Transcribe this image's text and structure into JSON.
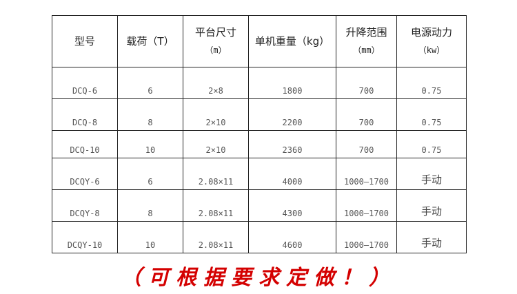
{
  "table": {
    "headers": [
      {
        "label": "型号",
        "unit": ""
      },
      {
        "label": "载荷（T）",
        "unit": ""
      },
      {
        "label": "平台尺寸",
        "unit": "（m）"
      },
      {
        "label": "单机重量（kg）",
        "unit": ""
      },
      {
        "label": "升降范围",
        "unit": "（mm）"
      },
      {
        "label": "电源动力",
        "unit": "（kw）"
      }
    ],
    "rows": [
      [
        "DCQ-6",
        "6",
        "2×8",
        "1800",
        "700",
        "0.75"
      ],
      [
        "DCQ-8",
        "8",
        "2×10",
        "2200",
        "700",
        "0.75"
      ],
      [
        "DCQ-10",
        "10",
        "2×10",
        "2360",
        "700",
        "0.75"
      ],
      [
        "DCQY-6",
        "6",
        "2.08×11",
        "4000",
        "1000—1700",
        "手动"
      ],
      [
        "DCQY-8",
        "8",
        "2.08×11",
        "4300",
        "1000—1700",
        "手动"
      ],
      [
        "DCQY-10",
        "10",
        "2.08×11",
        "4600",
        "1000—1700",
        "手动"
      ]
    ]
  },
  "slogan": "（可根据要求定做！）",
  "colors": {
    "slogan": "#d40000",
    "border": "#222222"
  }
}
